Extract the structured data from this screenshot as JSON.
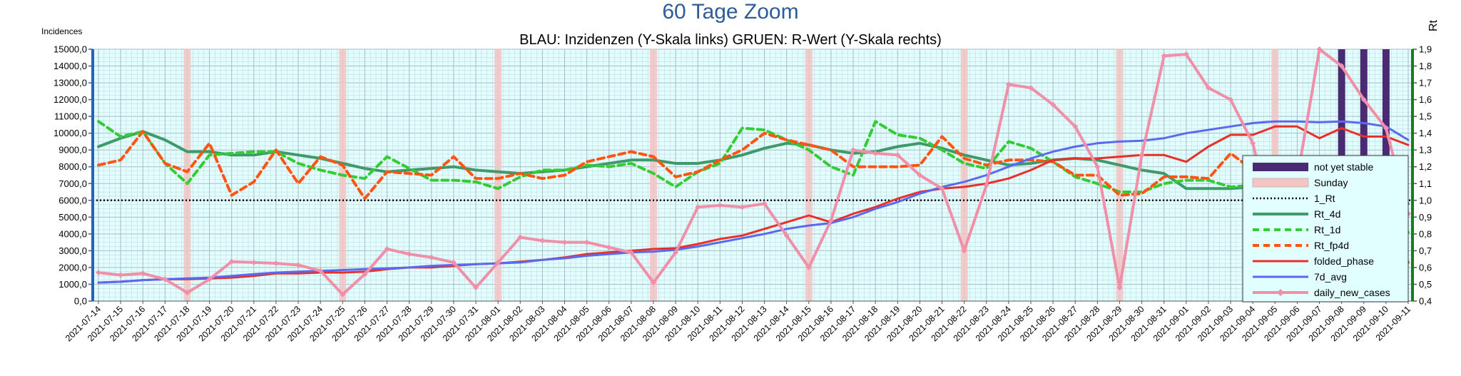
{
  "chart_data": {
    "type": "line",
    "title": "60 Tage Zoom",
    "subtitle": "BLAU: Inzidenzen (Y-Skala links)     GRUEN: R-Wert (Y-Skala rechts)",
    "ylabel_left": "Incidences",
    "ylabel_right": "Rt",
    "ylim_left": [
      0,
      15000
    ],
    "ylim_right": [
      0.4,
      1.9
    ],
    "left_tick_step": 1000,
    "right_tick_step": 0.1,
    "grid": true,
    "legend_position": "right",
    "x": [
      "2021-07-14",
      "2021-07-15",
      "2021-07-16",
      "2021-07-17",
      "2021-07-18",
      "2021-07-19",
      "2021-07-20",
      "2021-07-21",
      "2021-07-22",
      "2021-07-23",
      "2021-07-24",
      "2021-07-25",
      "2021-07-26",
      "2021-07-27",
      "2021-07-28",
      "2021-07-29",
      "2021-07-30",
      "2021-07-31",
      "2021-08-01",
      "2021-08-02",
      "2021-08-03",
      "2021-08-04",
      "2021-08-05",
      "2021-08-06",
      "2021-08-07",
      "2021-08-08",
      "2021-08-09",
      "2021-08-10",
      "2021-08-11",
      "2021-08-12",
      "2021-08-13",
      "2021-08-14",
      "2021-08-15",
      "2021-08-16",
      "2021-08-17",
      "2021-08-18",
      "2021-08-19",
      "2021-08-20",
      "2021-08-21",
      "2021-08-22",
      "2021-08-23",
      "2021-08-24",
      "2021-08-25",
      "2021-08-26",
      "2021-08-27",
      "2021-08-28",
      "2021-08-29",
      "2021-08-30",
      "2021-08-31",
      "2021-09-01",
      "2021-09-02",
      "2021-09-03",
      "2021-09-04",
      "2021-09-05",
      "2021-09-06",
      "2021-09-07",
      "2021-09-08",
      "2021-09-09",
      "2021-09-10",
      "2021-09-11"
    ],
    "x_tick_labels": [
      "2021-07-14",
      "2021-07-15",
      "2021-07-16",
      "2021-07-17",
      "2021-07-18",
      "2021-07-19",
      "2021-07-20",
      "2021-07-21",
      "2021-07-22",
      "2021-07-23",
      "2021-07-24",
      "2021-07-25",
      "2021-07-26",
      "2021-07-27",
      "2021-07-28",
      "2021-07-29",
      "2021-07-30",
      "2021-07-31",
      "2021-08-01",
      "2021-08-02",
      "2021-08-03",
      "2021-08-04",
      "2021-08-05",
      "2021-08-06",
      "2021-08-07",
      "2021-08-08",
      "2021-08-09",
      "2021-08-10",
      "2021-08-11",
      "2021-08-12",
      "2021-08-13",
      "2021-08-14",
      "2021-08-15",
      "2021-08-16",
      "2021-08-17",
      "2021-08-18",
      "2021-08-19",
      "2021-08-20",
      "2021-08-21",
      "2021-08-22",
      "2021-08-23",
      "2021-08-24",
      "2021-08-25",
      "2021-08-26",
      "2021-08-27",
      "2021-08-28",
      "2021-08-29",
      "2021-08-30",
      "2021-08-31",
      "2021-09-01",
      "2021-09-02",
      "2021-09-03",
      "2021-09-04",
      "2021-09-05",
      "2021-09-06",
      "2021-09-07",
      "2021-09-08",
      "2021-09-09",
      "2021-09-10",
      "2021-09-11"
    ],
    "not_yet_stable_dates": [
      "2021-09-08",
      "2021-09-09",
      "2021-09-10"
    ],
    "sunday_dates": [
      "2021-07-18",
      "2021-07-25",
      "2021-08-01",
      "2021-08-08",
      "2021-08-15",
      "2021-08-22",
      "2021-08-29",
      "2021-09-05"
    ],
    "rt_threshold": 1.0,
    "series": [
      {
        "name": "not yet stable",
        "kind": "band",
        "color": "#4b2a74"
      },
      {
        "name": "Sunday",
        "kind": "band",
        "color": "#f2c4c4"
      },
      {
        "name": "1_Rt",
        "axis": "right",
        "kind": "line",
        "color": "#000000",
        "dash": "2,3",
        "width": 2.5
      },
      {
        "name": "Rt_4d",
        "axis": "right",
        "kind": "line",
        "color": "#3f9a6a",
        "width": 4,
        "values": [
          1.32,
          1.37,
          1.41,
          1.36,
          1.29,
          1.29,
          1.27,
          1.27,
          1.29,
          1.27,
          1.25,
          1.22,
          1.19,
          1.17,
          1.18,
          1.19,
          1.2,
          1.18,
          1.17,
          1.16,
          1.17,
          1.18,
          1.2,
          1.22,
          1.24,
          1.24,
          1.22,
          1.22,
          1.24,
          1.27,
          1.31,
          1.34,
          1.33,
          1.3,
          1.28,
          1.29,
          1.32,
          1.34,
          1.31,
          1.27,
          1.24,
          1.21,
          1.22,
          1.24,
          1.25,
          1.24,
          1.21,
          1.18,
          1.16,
          1.07,
          1.07,
          1.07,
          1.08,
          1.07,
          1.06,
          1.04,
          1.03,
          1.01,
          1.0,
          0.98
        ]
      },
      {
        "name": "Rt_1d",
        "axis": "right",
        "kind": "line",
        "color": "#33cc33",
        "dash": "9,6",
        "width": 4,
        "values": [
          1.47,
          1.38,
          1.41,
          1.22,
          1.1,
          1.27,
          1.28,
          1.29,
          1.29,
          1.22,
          1.18,
          1.15,
          1.13,
          1.26,
          1.19,
          1.12,
          1.12,
          1.11,
          1.07,
          1.14,
          1.18,
          1.18,
          1.21,
          1.2,
          1.22,
          1.16,
          1.08,
          1.17,
          1.22,
          1.43,
          1.42,
          1.36,
          1.3,
          1.2,
          1.15,
          1.47,
          1.39,
          1.37,
          1.3,
          1.22,
          1.19,
          1.35,
          1.31,
          1.23,
          1.14,
          1.1,
          1.05,
          1.05,
          1.1,
          1.12,
          1.12,
          1.08,
          1.09,
          1.04,
          1.03,
          1.02,
          0.98,
          0.98,
          0.94,
          0.81
        ]
      },
      {
        "name": "Rt_fp4d",
        "axis": "right",
        "kind": "line",
        "color": "#ff5511",
        "dash": "9,6",
        "width": 4,
        "values": [
          1.21,
          1.24,
          1.41,
          1.22,
          1.17,
          1.34,
          1.03,
          1.11,
          1.3,
          1.1,
          1.26,
          1.21,
          1.01,
          1.17,
          1.16,
          1.15,
          1.26,
          1.13,
          1.13,
          1.16,
          1.13,
          1.15,
          1.23,
          1.26,
          1.29,
          1.26,
          1.14,
          1.17,
          1.24,
          1.3,
          1.4,
          1.36,
          1.33,
          1.3,
          1.2,
          1.2,
          1.2,
          1.21,
          1.38,
          1.25,
          1.21,
          1.24,
          1.24,
          1.23,
          1.15,
          1.15,
          1.03,
          1.04,
          1.14,
          1.14,
          1.13,
          1.28,
          1.18,
          1.07,
          0.99,
          0.98,
          0.93,
          0.93,
          0.85,
          0.63
        ]
      },
      {
        "name": "folded_phase",
        "axis": "left",
        "kind": "line",
        "color": "#e8302a",
        "width": 3,
        "values": [
          1100,
          1150,
          1250,
          1300,
          1300,
          1350,
          1400,
          1500,
          1650,
          1650,
          1700,
          1700,
          1750,
          1900,
          2000,
          2000,
          2100,
          2200,
          2250,
          2350,
          2450,
          2600,
          2800,
          2900,
          3000,
          3100,
          3150,
          3400,
          3700,
          3900,
          4300,
          4700,
          5100,
          4700,
          5200,
          5600,
          6100,
          6500,
          6700,
          6800,
          7000,
          7300,
          7800,
          8400,
          8500,
          8500,
          8600,
          8700,
          8700,
          8300,
          9200,
          9900,
          9900,
          10400,
          10400,
          9700,
          10300,
          9800,
          9800,
          9300
        ]
      },
      {
        "name": "7d_avg",
        "axis": "left",
        "kind": "line",
        "color": "#5a6af0",
        "width": 3,
        "values": [
          1100,
          1150,
          1250,
          1300,
          1350,
          1400,
          1500,
          1600,
          1700,
          1750,
          1800,
          1850,
          1900,
          1950,
          2000,
          2100,
          2150,
          2200,
          2250,
          2300,
          2450,
          2550,
          2700,
          2800,
          2900,
          2950,
          3050,
          3250,
          3500,
          3750,
          4000,
          4300,
          4500,
          4650,
          5000,
          5500,
          5900,
          6400,
          6800,
          7100,
          7500,
          8000,
          8500,
          8900,
          9200,
          9400,
          9500,
          9550,
          9700,
          10000,
          10200,
          10400,
          10600,
          10700,
          10700,
          10650,
          10700,
          10600,
          10400,
          9600
        ]
      },
      {
        "name": "daily_new_cases",
        "axis": "left",
        "kind": "line",
        "color": "#ef90a8",
        "width": 4,
        "marker": "diamond",
        "values": [
          1700,
          1550,
          1650,
          1300,
          500,
          1300,
          2350,
          2300,
          2250,
          2150,
          1800,
          400,
          1600,
          3100,
          2800,
          2600,
          2300,
          800,
          2300,
          3800,
          3600,
          3500,
          3500,
          3200,
          2900,
          1100,
          2900,
          5600,
          5700,
          5600,
          5800,
          3900,
          2000,
          4800,
          9000,
          8800,
          8700,
          7500,
          6700,
          3000,
          6900,
          12900,
          12700,
          11700,
          10400,
          8000,
          800,
          8700,
          14600,
          14700,
          12700,
          12000,
          9400,
          4000,
          7300,
          15000,
          14000,
          12000,
          10300,
          5200
        ]
      }
    ]
  }
}
